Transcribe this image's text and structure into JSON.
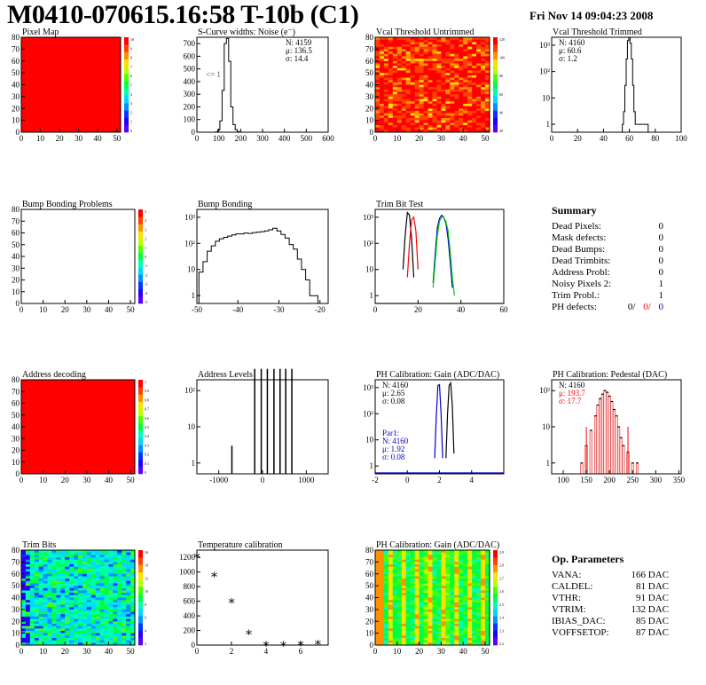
{
  "header": {
    "title": "M0410-070615.16:58 T-10b (C1)",
    "timestamp": "Fri Nov 14 09:04:23 2008"
  },
  "colors": {
    "red": "#ff0000",
    "blue": "#0000cc",
    "green": "#00cc00"
  },
  "chart_data": [
    {
      "id": "pixel-map",
      "type": "heatmap",
      "title": "Pixel Map",
      "xlim": [
        0,
        52
      ],
      "ylim": [
        0,
        80
      ],
      "xticks": [
        "0",
        "10",
        "20",
        "30",
        "40",
        "50"
      ],
      "yticks": [
        "0",
        "10",
        "20",
        "30",
        "40",
        "50",
        "60",
        "70",
        "80"
      ],
      "scale": "uniform-red",
      "palette_ticks": [
        "10",
        "9",
        "8",
        "7",
        "6",
        "5",
        "4",
        "3",
        "2",
        "1",
        "0"
      ]
    },
    {
      "id": "scurve-noise",
      "type": "bar",
      "title": "S-Curve widths: Noise (e⁻)",
      "xlim": [
        0,
        600
      ],
      "ylim": [
        0,
        750
      ],
      "xticks": [
        "0",
        "100",
        "200",
        "300",
        "400",
        "500",
        "600"
      ],
      "yticks": [
        "0",
        "100",
        "200",
        "300",
        "400",
        "500",
        "600",
        "700"
      ],
      "stats": [
        "N: 4159",
        "μ: 136.5",
        "σ: 14.4"
      ],
      "annotation": "<= 1",
      "x": [
        90,
        100,
        110,
        120,
        130,
        140,
        150,
        160,
        170,
        180,
        190
      ],
      "values": [
        2,
        20,
        90,
        330,
        700,
        740,
        560,
        200,
        60,
        20,
        4
      ]
    },
    {
      "id": "vcal-untrimmed",
      "type": "heatmap",
      "title": "Vcal Threshold Untrimmed",
      "xlim": [
        0,
        52
      ],
      "ylim": [
        0,
        80
      ],
      "xticks": [
        "0",
        "10",
        "20",
        "30",
        "40",
        "50"
      ],
      "yticks": [
        "0",
        "10",
        "20",
        "30",
        "40",
        "50",
        "60",
        "70",
        "80"
      ],
      "scale": "noisy-red-orange",
      "palette_ticks": [
        "120",
        "100",
        "80",
        "60",
        "40",
        "20"
      ]
    },
    {
      "id": "vcal-trimmed",
      "type": "bar",
      "title": "Vcal Threshold Trimmed",
      "xlim": [
        0,
        100
      ],
      "ylog": true,
      "xticks": [
        "0",
        "20",
        "40",
        "60",
        "80",
        "100"
      ],
      "yticks": [
        "1",
        "10",
        "10²",
        "10³"
      ],
      "stats": [
        "N: 4160",
        "μ: 60.6",
        "σ:  1.2"
      ],
      "x": [
        55,
        56,
        57,
        58,
        59,
        60,
        61,
        62,
        63,
        64,
        65,
        66,
        70,
        72,
        74
      ],
      "values": [
        1,
        3,
        30,
        300,
        1500,
        2000,
        1200,
        300,
        30,
        3,
        1,
        1,
        1,
        1,
        1
      ]
    },
    {
      "id": "bump-problems",
      "type": "heatmap",
      "title": "Bump Bonding Problems",
      "xlim": [
        0,
        52
      ],
      "ylim": [
        0,
        80
      ],
      "xticks": [
        "0",
        "10",
        "20",
        "30",
        "40",
        "50"
      ],
      "yticks": [
        "0",
        "10",
        "20",
        "30",
        "40",
        "50",
        "60",
        "70",
        "80"
      ],
      "scale": "empty",
      "palette_ticks": [
        "5",
        "4",
        "3",
        "2",
        "1",
        "0",
        "-1",
        "-2",
        "-3",
        "-4",
        "-5"
      ]
    },
    {
      "id": "bump-bonding",
      "type": "bar",
      "title": "Bump Bonding",
      "xlim": [
        -50,
        -18
      ],
      "ylog": true,
      "xticks": [
        "-50",
        "-40",
        "-30",
        "-20"
      ],
      "yticks": [
        "1",
        "10",
        "10²",
        "10³"
      ],
      "x": [
        -49,
        -48,
        -47,
        -46,
        -45,
        -44,
        -43,
        -42,
        -41,
        -40,
        -39,
        -38,
        -37,
        -36,
        -35,
        -34,
        -33,
        -32,
        -31,
        -30,
        -29,
        -28,
        -27,
        -26,
        -25,
        -24,
        -23,
        -22,
        -21
      ],
      "values": [
        8,
        20,
        50,
        80,
        120,
        150,
        170,
        190,
        210,
        230,
        230,
        250,
        240,
        260,
        270,
        280,
        300,
        330,
        380,
        300,
        220,
        160,
        90,
        60,
        25,
        10,
        4,
        1,
        1
      ]
    },
    {
      "id": "trim-bit-test",
      "type": "line",
      "title": "Trim Bit Test",
      "xlim": [
        0,
        60
      ],
      "ylog": true,
      "xticks": [
        "0",
        "20",
        "40",
        "60"
      ],
      "yticks": [
        "1",
        "10",
        "10²",
        "10³"
      ],
      "series": [
        {
          "color": "#000000",
          "x": [
            13,
            14,
            15,
            16,
            17,
            18
          ],
          "values": [
            10,
            200,
            1500,
            1200,
            150,
            5
          ]
        },
        {
          "color": "#ff0000",
          "x": [
            15,
            16,
            17,
            18,
            19,
            20
          ],
          "values": [
            5,
            100,
            800,
            1000,
            300,
            10
          ]
        },
        {
          "color": "#0000cc",
          "x": [
            27,
            28,
            29,
            30,
            31,
            32,
            33,
            34,
            35,
            36
          ],
          "values": [
            3,
            40,
            400,
            900,
            1200,
            1000,
            600,
            150,
            20,
            2
          ]
        },
        {
          "color": "#00cc00",
          "x": [
            27,
            28,
            29,
            30,
            31,
            32,
            33,
            34,
            35,
            36,
            37
          ],
          "values": [
            2,
            20,
            200,
            700,
            1000,
            1000,
            700,
            300,
            50,
            5,
            1
          ]
        }
      ]
    },
    {
      "id": "address-decoding",
      "type": "heatmap",
      "title": "Address decoding",
      "xlim": [
        0,
        52
      ],
      "ylim": [
        0,
        80
      ],
      "xticks": [
        "0",
        "10",
        "20",
        "30",
        "40",
        "50"
      ],
      "yticks": [
        "0",
        "10",
        "20",
        "30",
        "40",
        "50",
        "60",
        "70",
        "80"
      ],
      "scale": "uniform-red",
      "palette_ticks": [
        "1",
        "0.9",
        "0.8",
        "0.7",
        "0.6",
        "0.5",
        "0.4",
        "0.3",
        "0.2",
        "0.1",
        "0"
      ]
    },
    {
      "id": "address-levels",
      "type": "bar",
      "title": "Address Levels",
      "xlim": [
        -1500,
        1500
      ],
      "ylog": true,
      "xticks": [
        "-1000",
        "0",
        "1000"
      ],
      "yticks": [
        "1",
        "10",
        "10²"
      ],
      "x": [
        -700,
        -180,
        -30,
        110,
        260,
        400,
        530,
        670
      ],
      "values": [
        3,
        400,
        400,
        400,
        400,
        400,
        400,
        400
      ]
    },
    {
      "id": "ph-gain",
      "type": "line",
      "title": "PH Calibration: Gain (ADC/DAC)",
      "xlim": [
        -2,
        6
      ],
      "ylog": true,
      "xticks": [
        "-2",
        "0",
        "2",
        "4"
      ],
      "yticks": [
        "1",
        "10",
        "10²",
        "10³"
      ],
      "stats": [
        "N: 4160",
        "μ: 2.65",
        "σ: 0.08"
      ],
      "stats2": [
        "Par1:",
        "N: 4160",
        "μ: 1.92",
        "σ: 0.08"
      ],
      "series": [
        {
          "color": "#000000",
          "x": [
            2.4,
            2.5,
            2.6,
            2.7,
            2.8,
            2.9
          ],
          "values": [
            2,
            100,
            1200,
            1500,
            200,
            3
          ]
        },
        {
          "color": "#0000cc",
          "x": [
            1.7,
            1.8,
            1.9,
            2.0,
            2.1,
            2.2
          ],
          "values": [
            2,
            80,
            1200,
            1300,
            100,
            2
          ]
        }
      ]
    },
    {
      "id": "ph-pedestal",
      "type": "bar",
      "title": "PH Calibration: Pedestal (DAC)",
      "xlim": [
        75,
        355
      ],
      "ylog": true,
      "xticks": [
        "100",
        "150",
        "200",
        "250",
        "300",
        "350"
      ],
      "yticks": [
        "1",
        "10",
        "10²"
      ],
      "stats": [
        "N: 4160",
        "μ: 193.7",
        "σ: 17.7"
      ],
      "x": [
        140,
        150,
        160,
        170,
        175,
        180,
        185,
        190,
        195,
        200,
        205,
        210,
        215,
        220,
        225,
        230,
        240,
        250,
        260
      ],
      "values": [
        1,
        3,
        8,
        20,
        40,
        60,
        80,
        100,
        90,
        70,
        50,
        30,
        20,
        10,
        5,
        3,
        2,
        1,
        1
      ]
    },
    {
      "id": "trim-bits",
      "type": "heatmap",
      "title": "Trim Bits",
      "xlim": [
        0,
        52
      ],
      "ylim": [
        0,
        80
      ],
      "xticks": [
        "0",
        "10",
        "20",
        "30",
        "40",
        "50"
      ],
      "yticks": [
        "0",
        "10",
        "20",
        "30",
        "40",
        "50",
        "60",
        "70",
        "80"
      ],
      "scale": "noisy-cyan-green",
      "palette_ticks": [
        "16",
        "14",
        "12",
        "10",
        "8",
        "6",
        "4",
        "2"
      ]
    },
    {
      "id": "temp-calibration",
      "type": "scatter",
      "title": "Temperature calibration",
      "xlim": [
        0,
        7.6
      ],
      "ylim": [
        0,
        1300
      ],
      "xticks": [
        "0",
        "2",
        "4",
        "6"
      ],
      "yticks": [
        "0",
        "200",
        "400",
        "600",
        "800",
        "1000",
        "1200"
      ],
      "x": [
        0,
        1,
        2,
        3,
        4,
        5,
        6,
        7
      ],
      "values": [
        1220,
        960,
        600,
        170,
        15,
        15,
        20,
        30
      ]
    },
    {
      "id": "ph-gain-map",
      "type": "heatmap",
      "title": "PH Calibration: Gain (ADC/DAC)",
      "xlim": [
        0,
        52
      ],
      "ylim": [
        0,
        80
      ],
      "xticks": [
        "0",
        "10",
        "20",
        "30",
        "40",
        "50"
      ],
      "yticks": [
        "0",
        "10",
        "20",
        "30",
        "40",
        "50",
        "60",
        "70",
        "80"
      ],
      "scale": "striped-green",
      "palette_ticks": [
        "2.9",
        "2.8",
        "2.7",
        "2.6",
        "2.5",
        "2.4",
        "2.3",
        "2.2"
      ]
    }
  ],
  "summary": {
    "title": "Summary",
    "rows": [
      {
        "label": "Dead Pixels:",
        "value": "0"
      },
      {
        "label": "Mask defects:",
        "value": "0"
      },
      {
        "label": "Dead Bumps:",
        "value": "0"
      },
      {
        "label": "Dead Trimbits:",
        "value": "0"
      },
      {
        "label": "Address Probl:",
        "value": "0"
      },
      {
        "label": "Noisy Pixels 2:",
        "value": "1"
      },
      {
        "label": "Trim Probl.:",
        "value": "1"
      }
    ],
    "ph_label": "PH defects:",
    "ph_values": [
      "0/",
      "0/",
      "0"
    ]
  },
  "op_params": {
    "title": "Op. Parameters",
    "rows": [
      {
        "label": "VANA:",
        "value": "166 DAC"
      },
      {
        "label": "CALDEL:",
        "value": "81 DAC"
      },
      {
        "label": "VTHR:",
        "value": "91 DAC"
      },
      {
        "label": "VTRIM:",
        "value": "132 DAC"
      },
      {
        "label": "IBIAS_DAC:",
        "value": "85 DAC"
      },
      {
        "label": "VOFFSETOP:",
        "value": "87 DAC"
      }
    ]
  }
}
